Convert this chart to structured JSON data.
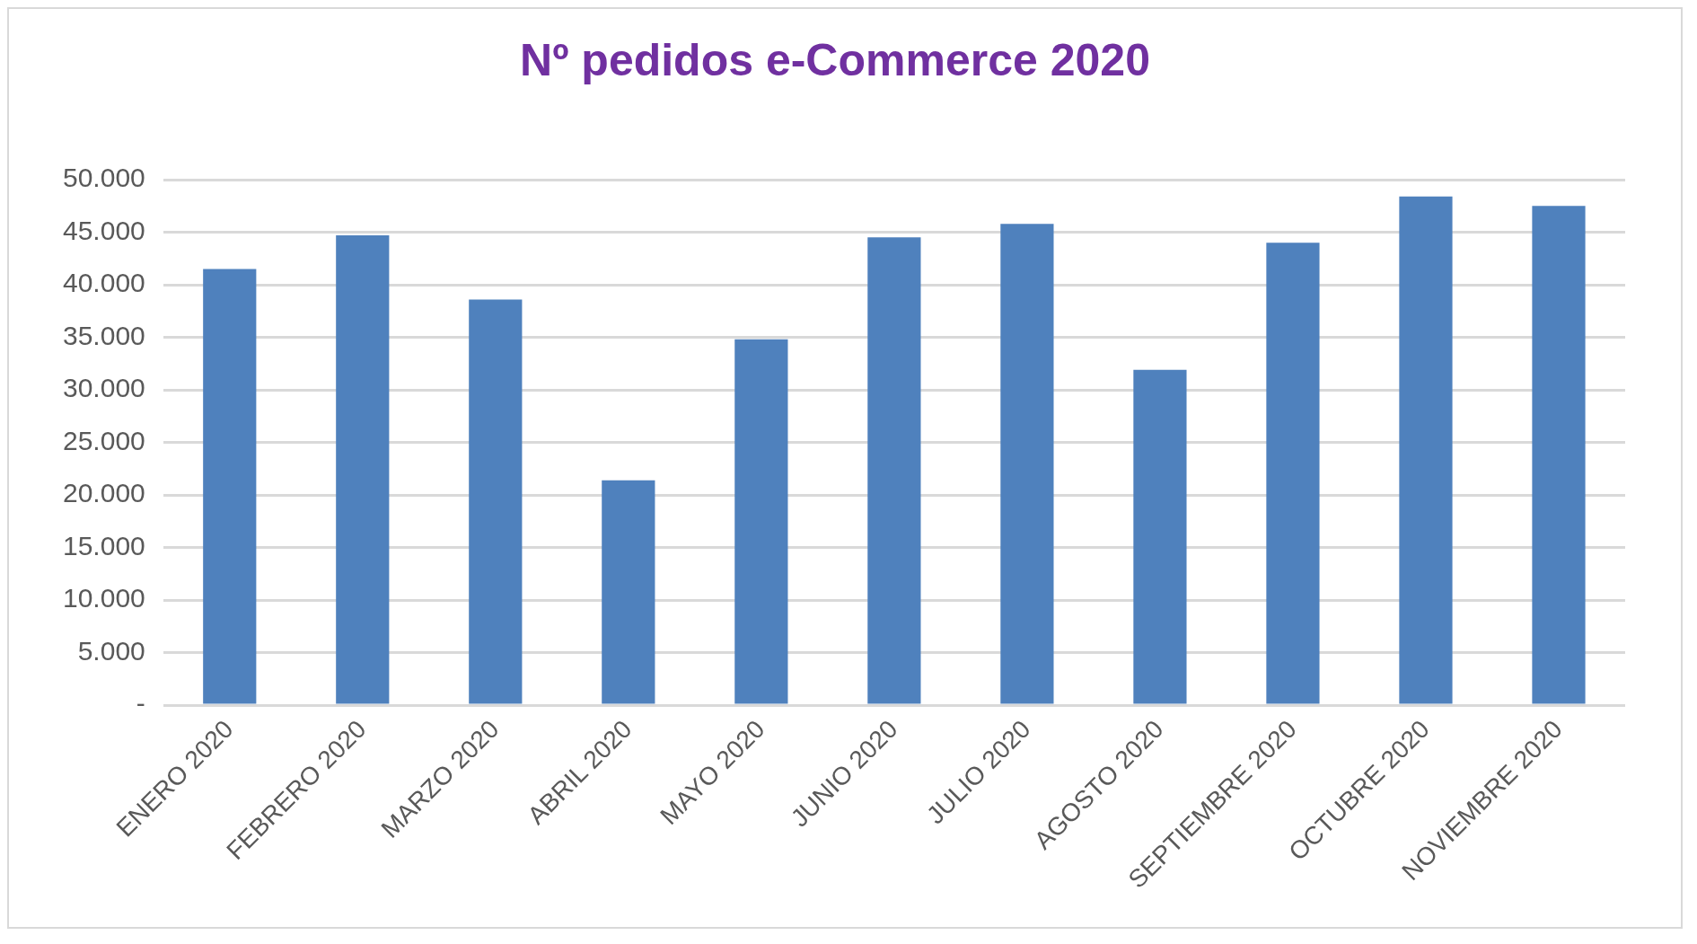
{
  "chart_data": {
    "type": "bar",
    "title": "Nº pedidos e-Commerce 2020",
    "categories": [
      "ENERO 2020",
      "FEBRERO 2020",
      "MARZO 2020",
      "ABRIL 2020",
      "MAYO 2020",
      "JUNIO 2020",
      "JULIO 2020",
      "AGOSTO 2020",
      "SEPTIEMBRE 2020",
      "OCTUBRE 2020",
      "NOVIEMBRE 2020"
    ],
    "values": [
      41500,
      44700,
      38600,
      21400,
      34800,
      44500,
      45800,
      31900,
      44000,
      48400,
      47500
    ],
    "color": "#4f81bd",
    "ylim": [
      0,
      50000
    ],
    "yticks": [
      {
        "value": 0,
        "label": "-"
      },
      {
        "value": 5000,
        "label": "5.000"
      },
      {
        "value": 10000,
        "label": "10.000"
      },
      {
        "value": 15000,
        "label": "15.000"
      },
      {
        "value": 20000,
        "label": "20.000"
      },
      {
        "value": 25000,
        "label": "25.000"
      },
      {
        "value": 30000,
        "label": "30.000"
      },
      {
        "value": 35000,
        "label": "35.000"
      },
      {
        "value": 40000,
        "label": "40.000"
      },
      {
        "value": 45000,
        "label": "45.000"
      },
      {
        "value": 50000,
        "label": "50.000"
      }
    ],
    "grid": "y",
    "legend": false
  }
}
